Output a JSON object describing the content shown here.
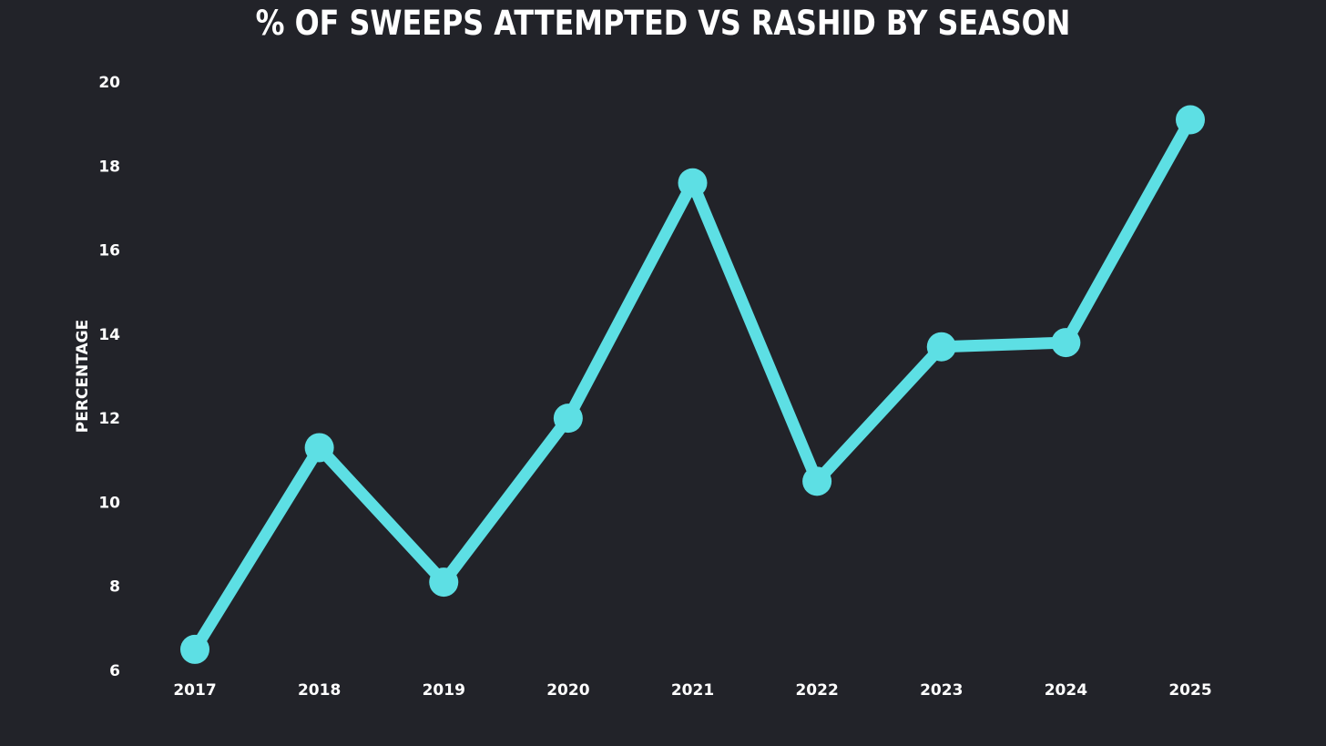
{
  "chart_data": {
    "type": "line",
    "title": "% OF SWEEPS ATTEMPTED VS RASHID BY SEASON",
    "xlabel": "",
    "ylabel": "PERCENTAGE",
    "categories": [
      "2017",
      "2018",
      "2019",
      "2020",
      "2021",
      "2022",
      "2023",
      "2024",
      "2025"
    ],
    "series": [
      {
        "values": [
          6.5,
          11.3,
          8.1,
          12.0,
          17.6,
          10.5,
          13.7,
          13.8,
          19.1
        ]
      }
    ],
    "yticks": [
      "6",
      "8",
      "10",
      "12",
      "14",
      "16",
      "18",
      "20"
    ],
    "ylim": [
      6,
      20
    ],
    "grid": false,
    "legend": "none",
    "colors": {
      "background": "#222329",
      "line": "#5ddfe4",
      "text": "#ffffff"
    }
  }
}
